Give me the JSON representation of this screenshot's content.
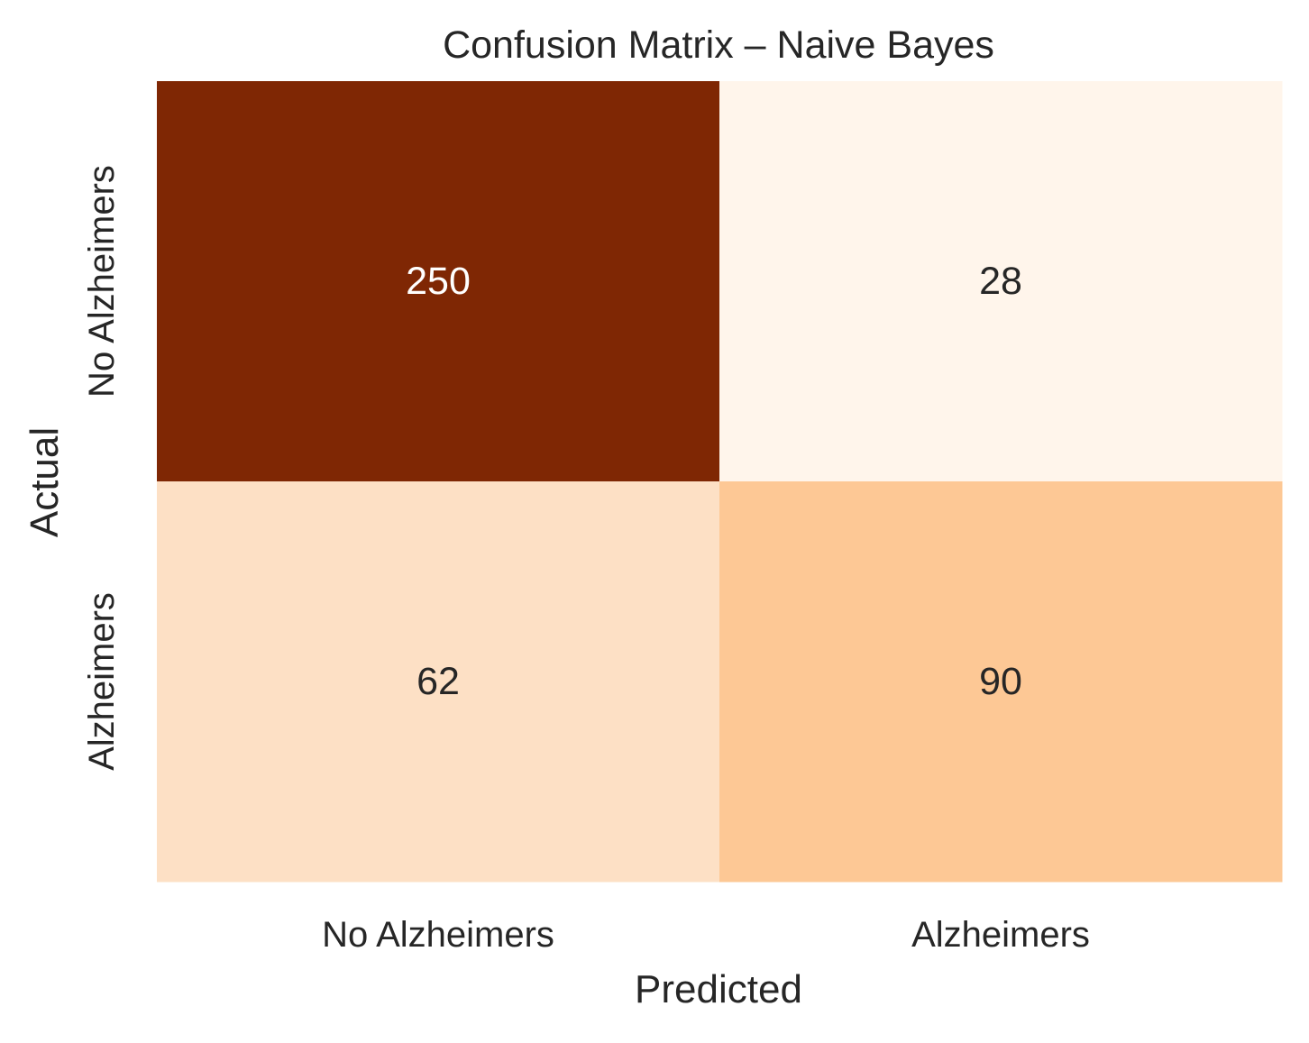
{
  "chart_data": {
    "type": "heatmap",
    "title": "Confusion Matrix – Naive Bayes",
    "xlabel": "Predicted",
    "ylabel": "Actual",
    "x_categories": [
      "No Alzheimers",
      "Alzheimers"
    ],
    "y_categories": [
      "No Alzheimers",
      "Alzheimers"
    ],
    "values": [
      [
        250,
        28
      ],
      [
        62,
        90
      ]
    ],
    "cell_colors": [
      [
        "#7f2704",
        "#fff5eb"
      ],
      [
        "#fde0c5",
        "#fdc895"
      ]
    ],
    "annotation_colors": [
      [
        "#ffffff",
        "#262626"
      ],
      [
        "#262626",
        "#262626"
      ]
    ],
    "colormap": "Oranges",
    "colorbar": false,
    "grid": false
  }
}
